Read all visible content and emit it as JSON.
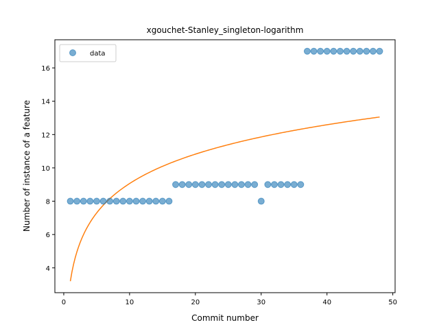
{
  "chart_data": {
    "type": "scatter",
    "title": "xgouchet-Stanley_singleton-logarithm",
    "xlabel": "Commit number",
    "ylabel": "Number of instance of a feature",
    "xlim": [
      -1.35,
      50.35
    ],
    "ylim": [
      2.51,
      17.69
    ],
    "xticks": [
      0,
      10,
      20,
      30,
      40,
      50
    ],
    "yticks": [
      4,
      6,
      8,
      10,
      12,
      14,
      16
    ],
    "grid": false,
    "legend": {
      "position": "top-left",
      "entries": [
        "data"
      ]
    },
    "series": [
      {
        "name": "data",
        "kind": "scatter",
        "color": "#1f77b4",
        "x": [
          1,
          2,
          3,
          4,
          5,
          6,
          7,
          8,
          9,
          10,
          11,
          12,
          13,
          14,
          15,
          16,
          17,
          18,
          19,
          20,
          21,
          22,
          23,
          24,
          25,
          26,
          27,
          28,
          29,
          30,
          31,
          32,
          33,
          34,
          35,
          36,
          37,
          38,
          39,
          40,
          41,
          42,
          43,
          44,
          45,
          46,
          47,
          48
        ],
        "y": [
          8,
          8,
          8,
          8,
          8,
          8,
          8,
          8,
          8,
          8,
          8,
          8,
          8,
          8,
          8,
          8,
          9,
          9,
          9,
          9,
          9,
          9,
          9,
          9,
          9,
          9,
          9,
          9,
          9,
          8,
          9,
          9,
          9,
          9,
          9,
          9,
          17,
          17,
          17,
          17,
          17,
          17,
          17,
          17,
          17,
          17,
          17,
          17
        ]
      },
      {
        "kind": "line",
        "color": "#ff7f0e",
        "fit": {
          "form": "a + b*ln(x)",
          "a": 3.2,
          "b": 2.545
        },
        "x_range": [
          1,
          48
        ]
      }
    ]
  }
}
